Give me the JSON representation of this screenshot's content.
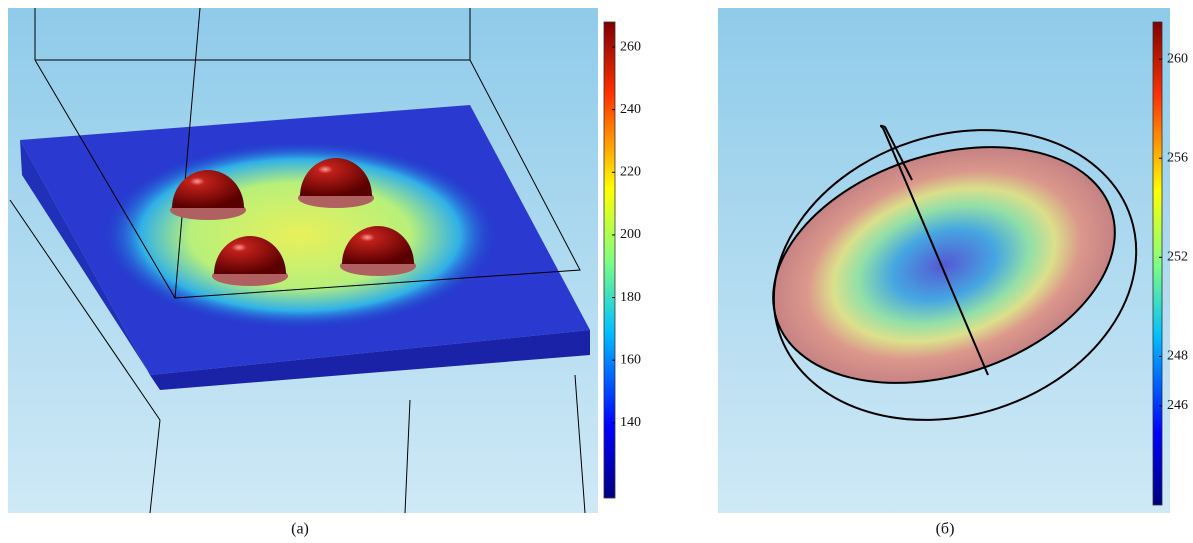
{
  "panels": [
    {
      "caption": "(a)",
      "colorbar": {
        "lim": [
          116,
          268
        ],
        "ticks": [
          260,
          240,
          220,
          200,
          180,
          160,
          140
        ]
      }
    },
    {
      "caption": "(б)",
      "colorbar": {
        "lim": [
          242,
          261.5
        ],
        "ticks": [
          260,
          256,
          252,
          248,
          246
        ]
      }
    }
  ]
}
